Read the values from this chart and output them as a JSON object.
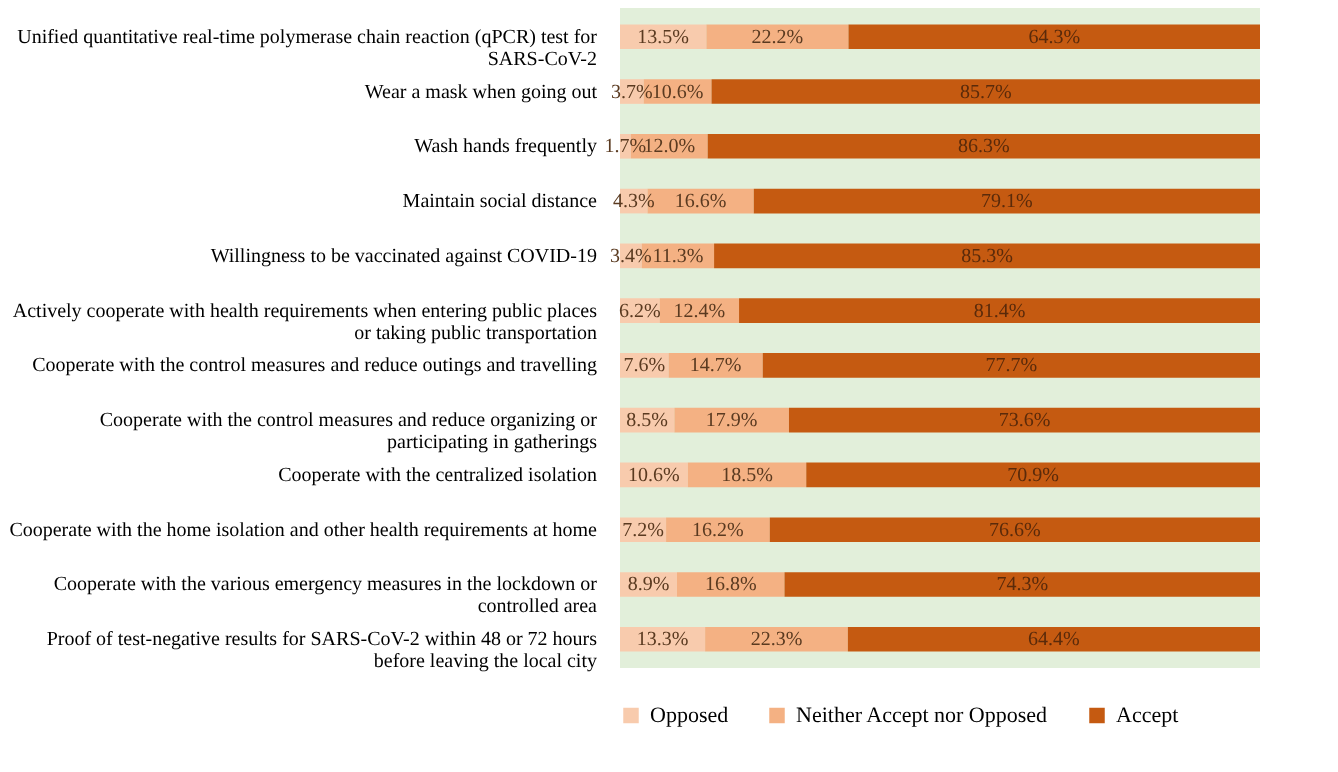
{
  "chart_data": {
    "type": "bar",
    "orientation": "horizontal",
    "stacked": true,
    "categories": [
      "Unified quantitative real-time polymerase chain reaction (qPCR) test for SARS-CoV-2",
      "Wear a mask when going out",
      "Wash hands frequently",
      "Maintain social distance",
      "Willingness to be vaccinated against COVID-19",
      "Actively cooperate with health requirements when entering public places or taking public transportation",
      "Cooperate with the control measures and reduce outings and travelling",
      "Cooperate with the control measures and reduce organizing or participating in gatherings",
      "Cooperate with the centralized isolation",
      "Cooperate with the home isolation and other health requirements at home",
      "Cooperate with the various emergency measures in the lockdown or controlled area",
      "Proof of test-negative results for SARS-CoV-2 within 48 or 72 hours before leaving the local city"
    ],
    "series": [
      {
        "name": "Opposed",
        "color": "#f8cbad",
        "values": [
          13.5,
          3.7,
          1.7,
          4.3,
          3.4,
          6.2,
          7.6,
          8.5,
          10.6,
          7.2,
          8.9,
          13.3
        ],
        "value_labels": [
          "13.5%",
          "3.7%",
          "1.7%",
          "4.3%",
          "3.4%",
          "6.2%",
          "7.6%",
          "8.5%",
          "10.6%",
          "7.2%",
          "8.9%",
          "13.3%"
        ]
      },
      {
        "name": "Neither Accept nor Opposed",
        "color": "#f4b183",
        "values": [
          22.2,
          10.6,
          12.0,
          16.6,
          11.3,
          12.4,
          14.7,
          17.9,
          18.5,
          16.2,
          16.8,
          22.3
        ],
        "value_labels": [
          "22.2%",
          "10.6%",
          "12.0%",
          "16.6%",
          "11.3%",
          "12.4%",
          "14.7%",
          "17.9%",
          "18.5%",
          "16.2%",
          "16.8%",
          "22.3%"
        ]
      },
      {
        "name": "Accept",
        "color": "#c55a11",
        "values": [
          64.3,
          85.7,
          86.3,
          79.1,
          85.3,
          81.4,
          77.7,
          73.6,
          70.9,
          76.6,
          74.3,
          64.4
        ],
        "value_labels": [
          "64.3%",
          "85.7%",
          "86.3%",
          "79.1%",
          "85.3%",
          "81.4%",
          "77.7%",
          "73.6%",
          "70.9%",
          "76.6%",
          "74.3%",
          "64.4%"
        ]
      }
    ],
    "xlim": [
      0,
      100
    ],
    "tick_labels": "y",
    "legend": "bottom"
  }
}
